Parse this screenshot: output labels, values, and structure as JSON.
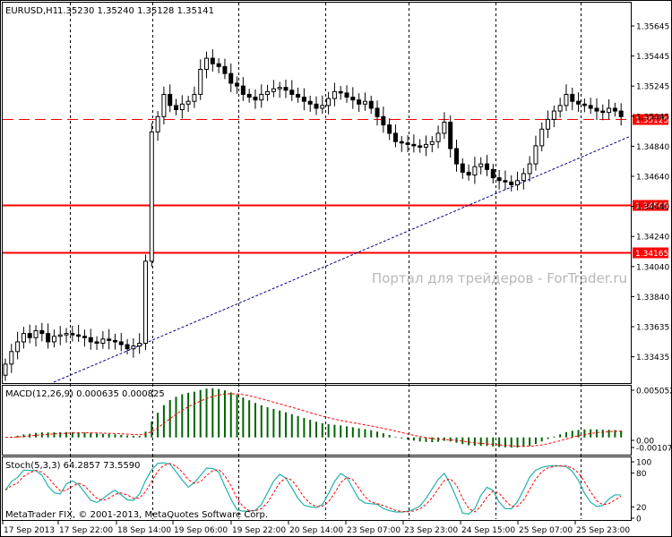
{
  "chart_data": [
    {
      "type": "candlestick",
      "title": "EURUSD,H1",
      "ohlc_header": "1.35230 1.35240 1.35128 1.35141",
      "watermark": "Портал для трейдеров - ForTrader.ru",
      "ylim": [
        1.3323,
        1.3585
      ],
      "ytick_labels": [
        "1.35645",
        "1.35445",
        "1.35245",
        "1.35045",
        "1.34840",
        "1.34640",
        "1.34440",
        "1.34240",
        "1.34040",
        "1.33840",
        "1.33635",
        "1.33435"
      ],
      "xtick_labels": [
        "17 Sep 2013",
        "17 Sep 22:00",
        "18 Sep 14:00",
        "19 Sep 06:00",
        "19 Sep 22:00",
        "20 Sep 14:00",
        "23 Sep 07:00",
        "23 Sep 23:00",
        "24 Sep 15:00",
        "25 Sep 07:00",
        "25 Sep 23:00"
      ],
      "horizontal_lines": [
        {
          "price": 1.35125,
          "label": "1.35125",
          "style": "dashed",
          "color": "#ff0000"
        },
        {
          "price": 1.34505,
          "label": "1.34505",
          "style": "solid",
          "color": "#ff0000"
        },
        {
          "price": 1.34165,
          "label": "1.34165",
          "style": "solid",
          "color": "#ff0000"
        }
      ],
      "trendline": {
        "color": "#00008b",
        "from_price": 1.3323,
        "to_price": 1.35
      },
      "closes": [
        1.3336,
        1.3345,
        1.3352,
        1.3358,
        1.3355,
        1.336,
        1.3358,
        1.3352,
        1.3356,
        1.3357,
        1.3358,
        1.3357,
        1.3356,
        1.3355,
        1.3352,
        1.3351,
        1.3354,
        1.3353,
        1.3352,
        1.335,
        1.3347,
        1.3349,
        1.3351,
        1.341,
        1.3503,
        1.3514,
        1.353,
        1.3522,
        1.3519,
        1.3523,
        1.3525,
        1.353,
        1.3548,
        1.3556,
        1.3552,
        1.355,
        1.3545,
        1.3538,
        1.3536,
        1.353,
        1.3528,
        1.3526,
        1.353,
        1.3532,
        1.3534,
        1.3535,
        1.3533,
        1.353,
        1.3528,
        1.3525,
        1.3523,
        1.352,
        1.3522,
        1.3527,
        1.3532,
        1.3531,
        1.3528,
        1.3526,
        1.3523,
        1.3525,
        1.352,
        1.3514,
        1.3508,
        1.3502,
        1.3496,
        1.3495,
        1.3494,
        1.3493,
        1.3492,
        1.3494,
        1.3496,
        1.3502,
        1.351,
        1.3491,
        1.348,
        1.3474,
        1.3472,
        1.3478,
        1.348,
        1.3476,
        1.347,
        1.3468,
        1.3467,
        1.3465,
        1.3468,
        1.3473,
        1.348,
        1.3493,
        1.3505,
        1.3512,
        1.3518,
        1.3522,
        1.353,
        1.3525,
        1.3523,
        1.3522,
        1.352,
        1.3518,
        1.3517,
        1.352,
        1.3518,
        1.3514
      ]
    },
    {
      "type": "histogram",
      "title": "MACD(12,26,9) 0.000635 0.000825",
      "ytick_labels": [
        "0.005052",
        "0.00",
        "-0.001079"
      ],
      "ylim": [
        -0.001079,
        0.005052
      ],
      "colors": {
        "bars": "#006400",
        "signal": "#ff0000"
      }
    },
    {
      "type": "line",
      "title": "Stoch(5,3,3) 64.2857 73.5590",
      "ytick_labels": [
        "100",
        "80",
        "20",
        "0"
      ],
      "ylim": [
        0,
        100
      ],
      "colors": {
        "main": "#20b2aa",
        "signal": "#ff0000"
      }
    }
  ],
  "copyright": "MetaTrader FIX, © 2001-2013, MetaQuotes Software Corp."
}
